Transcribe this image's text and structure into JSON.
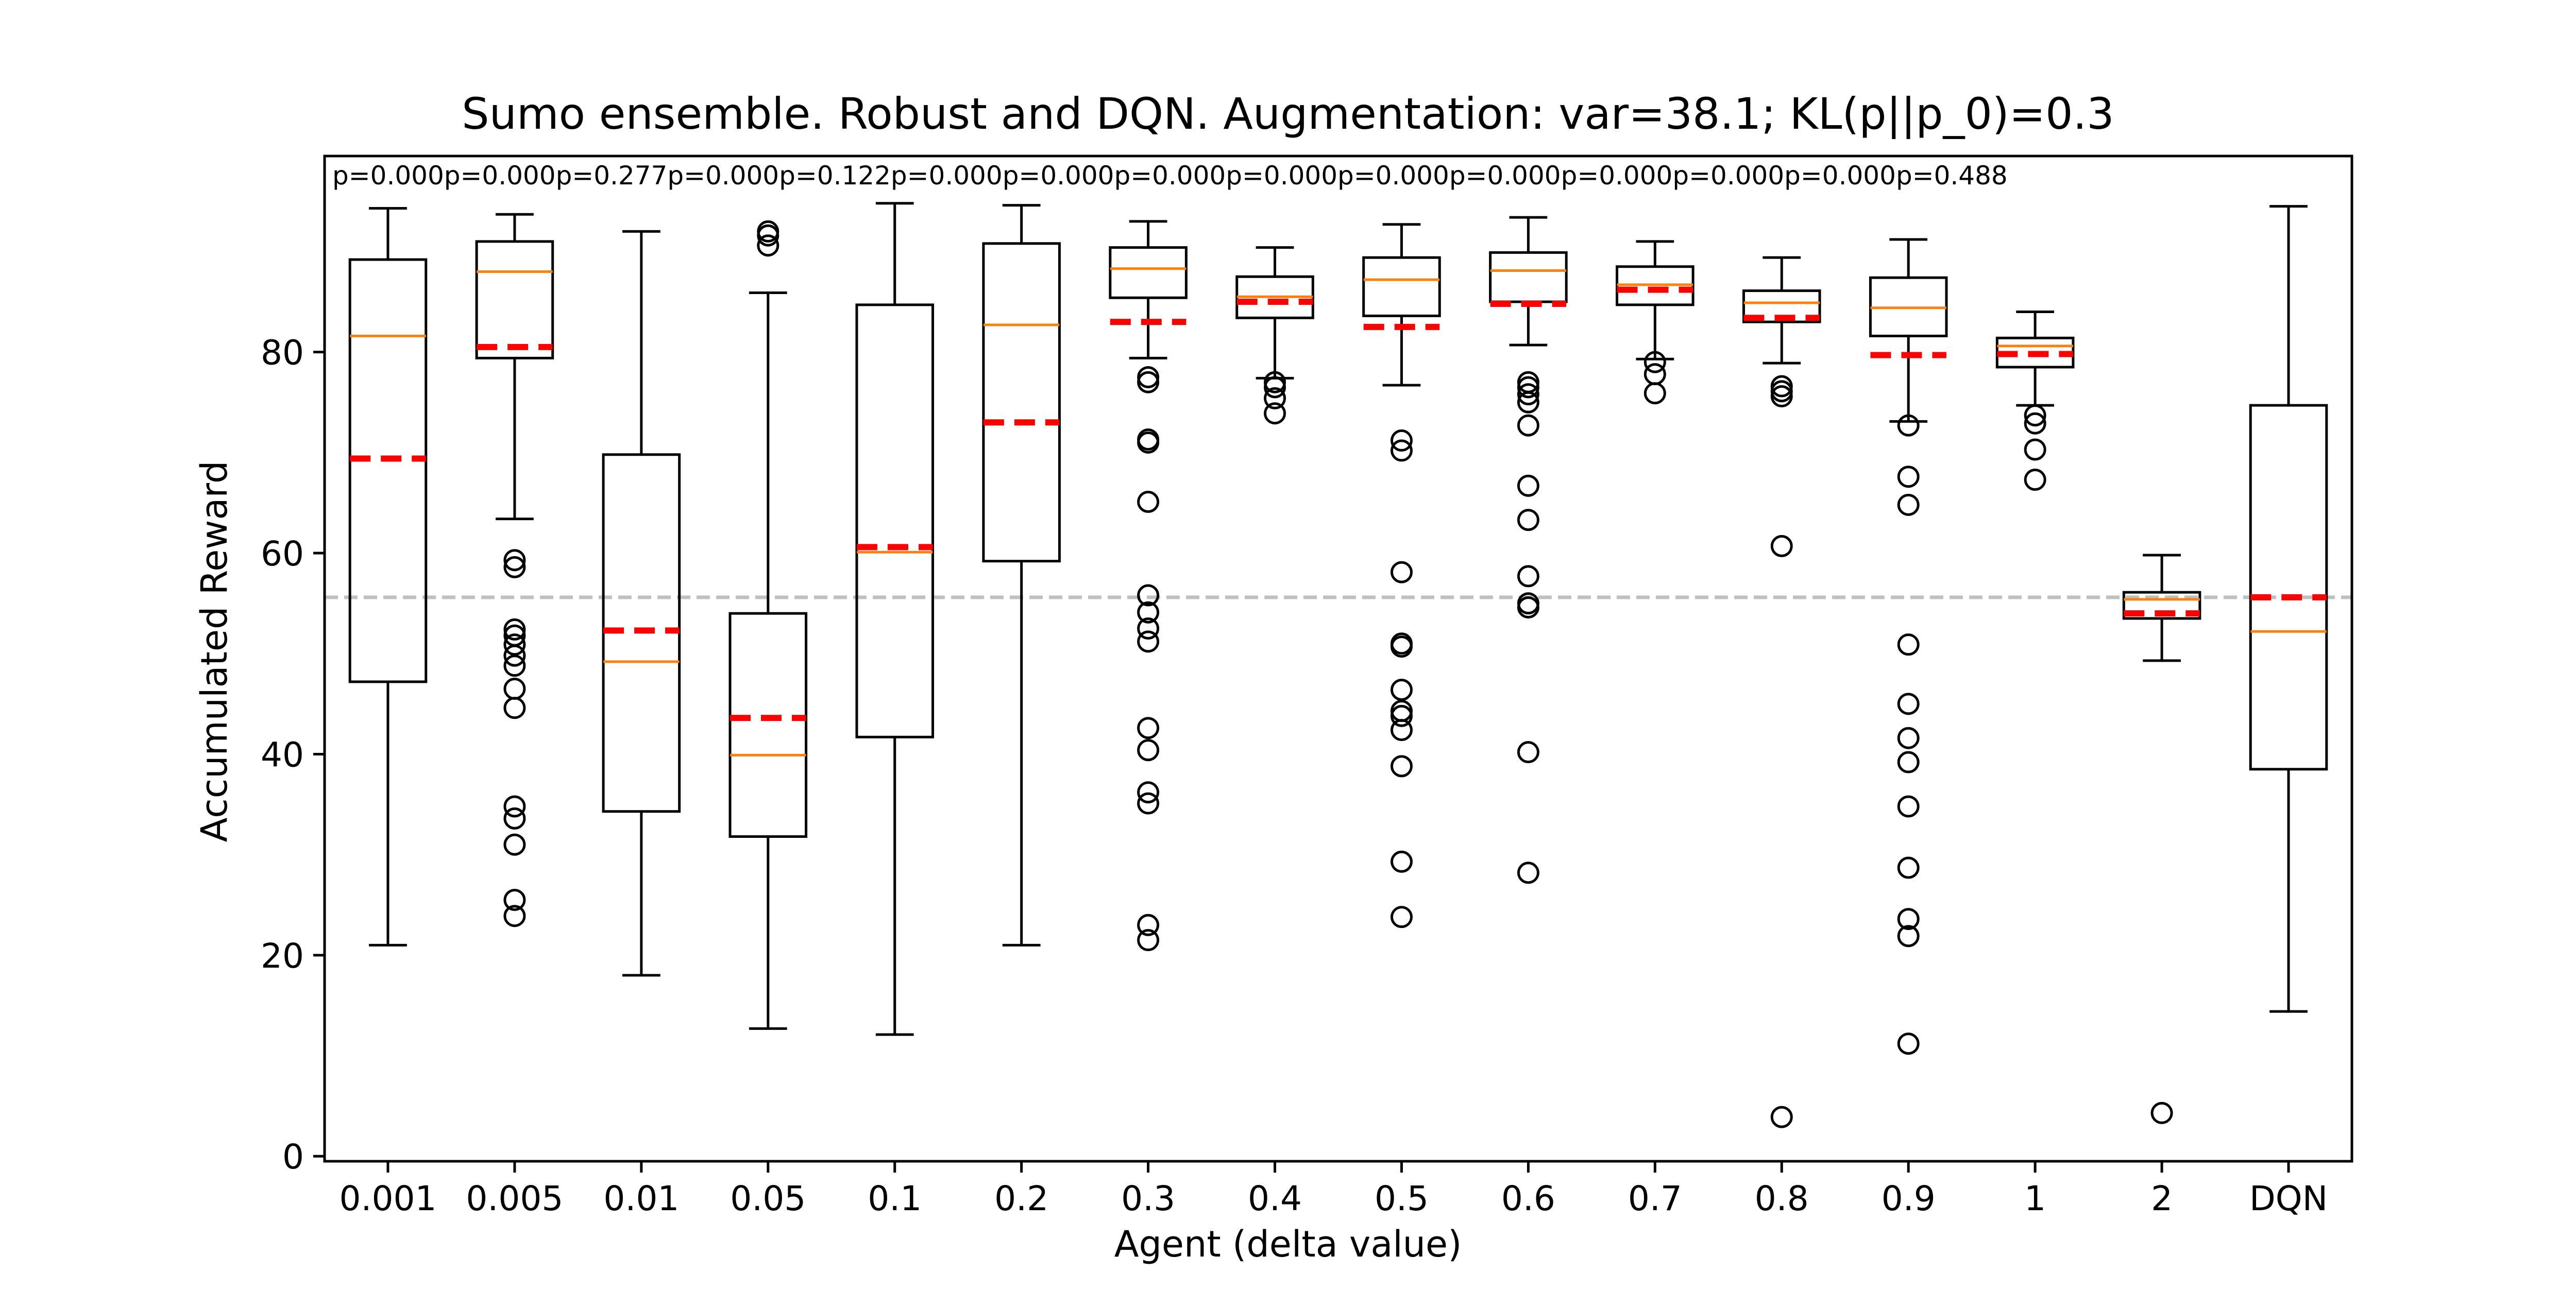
{
  "chart_data": {
    "type": "box",
    "title": "Sumo ensemble. Robust and DQN. Augmentation: var=38.1; KL(p||p_0)=0.3",
    "xlabel": "Agent (delta value)",
    "ylabel": "Accumulated Reward",
    "ylim": [
      -0.5,
      99.5
    ],
    "yticks": [
      0,
      20,
      40,
      60,
      80
    ],
    "grid": false,
    "reference_line": {
      "value": 55.6,
      "style": "dashed",
      "color": "#c0c0c0"
    },
    "colors": {
      "box": "#000000",
      "median": "#ff7f0e",
      "mean": "#ff0000",
      "reference": "#c0c0c0"
    },
    "pvalue_labels": [
      "p=0.000",
      "p=0.000",
      "p=0.277",
      "p=0.000",
      "p=0.122",
      "p=0.000",
      "p=0.000",
      "p=0.000",
      "p=0.000",
      "p=0.000",
      "p=0.000",
      "p=0.000",
      "p=0.000",
      "p=0.000",
      "p=0.488"
    ],
    "categories": [
      "0.001",
      "0.005",
      "0.01",
      "0.05",
      "0.1",
      "0.2",
      "0.3",
      "0.4",
      "0.5",
      "0.6",
      "0.7",
      "0.8",
      "0.9",
      "1",
      "2",
      "DQN"
    ],
    "boxes": [
      {
        "whislo": 21.0,
        "q1": 47.2,
        "med": 81.6,
        "q3": 89.2,
        "whishi": 94.3,
        "mean": 69.4,
        "fliers": []
      },
      {
        "whislo": 63.4,
        "q1": 79.4,
        "med": 88.0,
        "q3": 91.0,
        "whishi": 93.7,
        "mean": 80.5,
        "fliers": [
          59.3,
          58.6,
          52.4,
          51.8,
          50.9,
          49.8,
          48.8,
          46.5,
          44.6,
          34.8,
          33.6,
          31.0,
          25.5,
          23.9
        ]
      },
      {
        "whislo": 18.0,
        "q1": 34.3,
        "med": 49.2,
        "q3": 69.8,
        "whishi": 92.0,
        "mean": 52.3,
        "fliers": []
      },
      {
        "whislo": 12.7,
        "q1": 31.8,
        "med": 39.9,
        "q3": 54.0,
        "whishi": 85.9,
        "mean": 43.6,
        "fliers": [
          92.0,
          91.6,
          90.6
        ]
      },
      {
        "whislo": 12.1,
        "q1": 41.7,
        "med": 60.1,
        "q3": 84.7,
        "whishi": 94.8,
        "mean": 60.6,
        "fliers": []
      },
      {
        "whislo": 21.0,
        "q1": 59.2,
        "med": 82.7,
        "q3": 90.8,
        "whishi": 94.6,
        "mean": 73.0,
        "fliers": []
      },
      {
        "whislo": 79.4,
        "q1": 85.4,
        "med": 88.3,
        "q3": 90.4,
        "whishi": 93.0,
        "mean": 83.0,
        "fliers": [
          77.5,
          77.0,
          71.3,
          71.0,
          65.1,
          55.8,
          54.1,
          52.5,
          51.2,
          42.6,
          40.4,
          36.2,
          35.1,
          23.0,
          21.5
        ]
      },
      {
        "whislo": 77.4,
        "q1": 83.4,
        "med": 85.5,
        "q3": 87.5,
        "whishi": 90.4,
        "mean": 85.0,
        "fliers": [
          77.0,
          76.5,
          75.4,
          73.9
        ]
      },
      {
        "whislo": 76.7,
        "q1": 83.6,
        "med": 87.2,
        "q3": 89.4,
        "whishi": 92.7,
        "mean": 82.5,
        "fliers": [
          71.2,
          70.2,
          58.1,
          51.0,
          50.7,
          46.4,
          44.3,
          43.8,
          42.4,
          38.8,
          29.3,
          23.8
        ]
      },
      {
        "whislo": 80.7,
        "q1": 85.0,
        "med": 88.1,
        "q3": 89.9,
        "whishi": 93.4,
        "mean": 84.8,
        "fliers": [
          77.0,
          76.5,
          75.8,
          75.0,
          72.7,
          66.7,
          63.3,
          57.7,
          55.0,
          54.6,
          40.2,
          28.2
        ]
      },
      {
        "whislo": 79.3,
        "q1": 84.7,
        "med": 86.7,
        "q3": 88.5,
        "whishi": 91.0,
        "mean": 86.2,
        "fliers": [
          79.0,
          77.8,
          75.9
        ]
      },
      {
        "whislo": 78.9,
        "q1": 83.0,
        "med": 84.9,
        "q3": 86.1,
        "whishi": 89.4,
        "mean": 83.4,
        "fliers": [
          76.6,
          76.1,
          75.6,
          60.7,
          3.9
        ]
      },
      {
        "whislo": 73.1,
        "q1": 81.6,
        "med": 84.4,
        "q3": 87.4,
        "whishi": 91.2,
        "mean": 79.7,
        "fliers": [
          72.7,
          67.6,
          64.8,
          50.9,
          45.0,
          41.6,
          39.2,
          34.8,
          28.7,
          23.6,
          21.9,
          11.2
        ]
      },
      {
        "whislo": 74.7,
        "q1": 78.5,
        "med": 80.6,
        "q3": 81.4,
        "whishi": 84.0,
        "mean": 79.8,
        "fliers": [
          73.7,
          72.9,
          70.3,
          67.3
        ]
      },
      {
        "whislo": 49.3,
        "q1": 53.5,
        "med": 55.4,
        "q3": 56.1,
        "whishi": 59.8,
        "mean": 54.0,
        "fliers": [
          4.3
        ]
      },
      {
        "whislo": 14.4,
        "q1": 38.5,
        "med": 52.2,
        "q3": 74.7,
        "whishi": 94.5,
        "mean": 55.6,
        "fliers": []
      }
    ]
  }
}
